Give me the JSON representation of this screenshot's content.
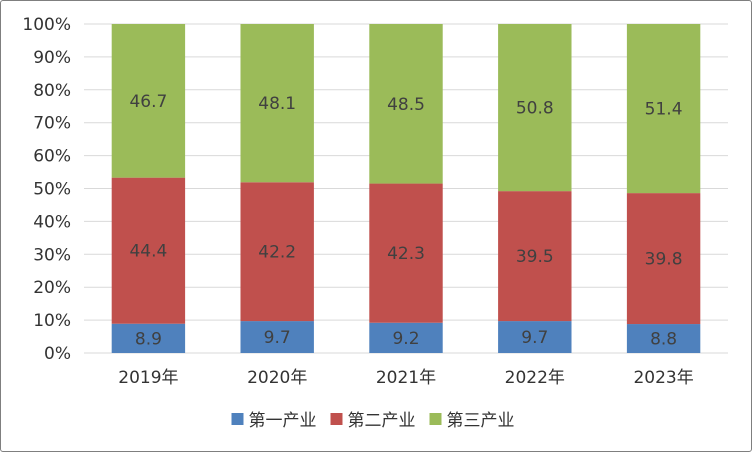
{
  "chart_data": {
    "type": "bar",
    "stacked": true,
    "percent": true,
    "categories": [
      "2019年",
      "2020年",
      "2021年",
      "2022年",
      "2023年"
    ],
    "series": [
      {
        "name": "第一产业",
        "color": "#4f81bd",
        "values": [
          8.9,
          9.7,
          9.2,
          9.7,
          8.8
        ]
      },
      {
        "name": "第二产业",
        "color": "#c0504d",
        "values": [
          44.4,
          42.2,
          42.3,
          39.5,
          39.8
        ]
      },
      {
        "name": "第三产业",
        "color": "#9bbb59",
        "values": [
          46.7,
          48.1,
          48.5,
          50.8,
          51.4
        ]
      }
    ],
    "ylim": [
      0,
      100
    ],
    "yticks": [
      "0%",
      "10%",
      "20%",
      "30%",
      "40%",
      "50%",
      "60%",
      "70%",
      "80%",
      "90%",
      "100%"
    ],
    "grid": true,
    "legend_position": "bottom"
  }
}
